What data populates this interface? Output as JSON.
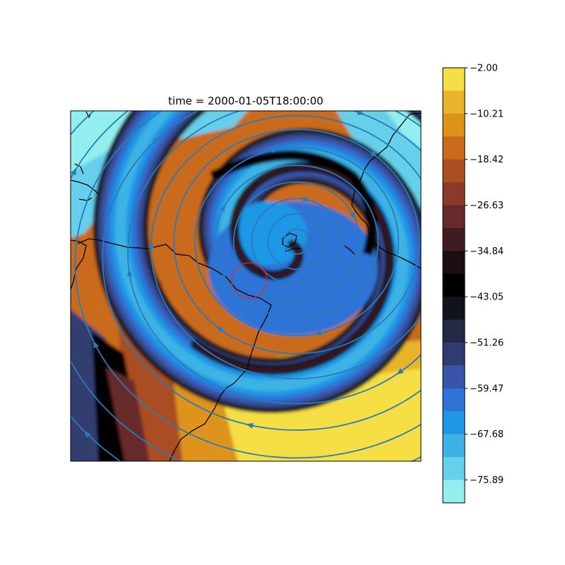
{
  "title": "time = 2000-01-05T18:00:00",
  "colorbar": {
    "ticks": [
      "−2.00",
      "−10.21",
      "−18.42",
      "−26.63",
      "−34.84",
      "−43.05",
      "−51.26",
      "−59.47",
      "−67.68",
      "−75.89"
    ],
    "levels": [
      {
        "lo": -6.1,
        "hi": -2.0,
        "color": "#f5df45"
      },
      {
        "lo": -10.2,
        "hi": -6.1,
        "color": "#e8b42b"
      },
      {
        "lo": -14.3,
        "hi": -10.2,
        "color": "#dd931a"
      },
      {
        "lo": -18.4,
        "hi": -14.3,
        "color": "#c96b1b"
      },
      {
        "lo": -22.5,
        "hi": -18.4,
        "color": "#ab4e20"
      },
      {
        "lo": -26.6,
        "hi": -22.5,
        "color": "#8a3a26"
      },
      {
        "lo": -30.7,
        "hi": -26.6,
        "color": "#662a2a"
      },
      {
        "lo": -34.8,
        "hi": -30.7,
        "color": "#3f1c20"
      },
      {
        "lo": -39.0,
        "hi": -34.8,
        "color": "#1c0d10"
      },
      {
        "lo": -43.1,
        "hi": -39.0,
        "color": "#000000"
      },
      {
        "lo": -47.2,
        "hi": -43.1,
        "color": "#11131c"
      },
      {
        "lo": -51.3,
        "hi": -47.2,
        "color": "#222845"
      },
      {
        "lo": -55.4,
        "hi": -51.3,
        "color": "#303c70"
      },
      {
        "lo": -59.5,
        "hi": -55.4,
        "color": "#3854a8"
      },
      {
        "lo": -63.6,
        "hi": -59.5,
        "color": "#2f73d6"
      },
      {
        "lo": -67.7,
        "hi": -63.6,
        "color": "#1e97e6"
      },
      {
        "lo": -71.8,
        "hi": -67.7,
        "color": "#3eb2e4"
      },
      {
        "lo": -75.9,
        "hi": -71.8,
        "color": "#66cfe9"
      },
      {
        "lo": -80.0,
        "hi": -75.9,
        "color": "#93efee"
      }
    ]
  },
  "streamline_color": "#2b7bb9",
  "marker_color": "#e32626",
  "coastline_color": "#000000"
}
